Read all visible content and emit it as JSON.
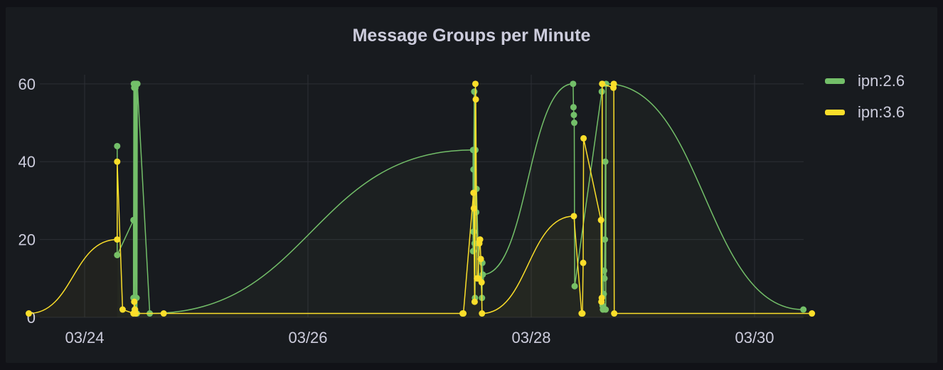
{
  "panel": {
    "title": "Message Groups per Minute"
  },
  "legend": {
    "items": [
      {
        "label": "ipn:2.6",
        "color": "#73bf69"
      },
      {
        "label": "ipn:3.6",
        "color": "#fade2a"
      }
    ]
  },
  "chart_data": {
    "type": "line",
    "title": "Message Groups per Minute",
    "xlabel": "",
    "ylabel": "",
    "xlim": [
      "03/23 12:00",
      "03/30 12:20"
    ],
    "ylim": [
      0,
      66
    ],
    "x_ticks": [
      "03/24",
      "03/26",
      "03/28",
      "03/30"
    ],
    "y_ticks": [
      0,
      20,
      40,
      60
    ],
    "grid": true,
    "legend_position": "right",
    "series": [
      {
        "name": "ipn:2.6",
        "color": "#73bf69",
        "points": [
          [
            "03/24 07:00",
            44
          ],
          [
            "03/24 07:00",
            16
          ],
          [
            "03/24 10:30",
            25
          ],
          [
            "03/24 10:30",
            5
          ],
          [
            "03/24 10:35",
            60
          ],
          [
            "03/24 10:40",
            59
          ],
          [
            "03/24 10:45",
            2
          ],
          [
            "03/24 10:50",
            60
          ],
          [
            "03/24 10:55",
            59
          ],
          [
            "03/24 11:00",
            1
          ],
          [
            "03/24 11:05",
            60
          ],
          [
            "03/24 11:10",
            5
          ],
          [
            "03/24 11:15",
            1
          ],
          [
            "03/24 11:20",
            60
          ],
          [
            "03/24 14:00",
            1
          ],
          [
            "03/27 11:30",
            43
          ],
          [
            "03/27 11:30",
            17
          ],
          [
            "03/27 11:35",
            38
          ],
          [
            "03/27 11:35",
            22
          ],
          [
            "03/27 11:40",
            43
          ],
          [
            "03/27 11:45",
            58
          ],
          [
            "03/27 11:50",
            19
          ],
          [
            "03/27 11:55",
            5
          ],
          [
            "03/27 12:00",
            43
          ],
          [
            "03/27 12:10",
            27
          ],
          [
            "03/27 12:15",
            33
          ],
          [
            "03/27 12:45",
            10
          ],
          [
            "03/27 13:10",
            10
          ],
          [
            "03/27 13:25",
            5
          ],
          [
            "03/27 13:30",
            14
          ],
          [
            "03/27 13:35",
            11
          ],
          [
            "03/28 09:00",
            60
          ],
          [
            "03/28 09:05",
            54
          ],
          [
            "03/28 09:10",
            52
          ],
          [
            "03/28 09:15",
            50
          ],
          [
            "03/28 09:20",
            8
          ],
          [
            "03/28 15:10",
            58
          ],
          [
            "03/28 15:15",
            60
          ],
          [
            "03/28 15:20",
            3
          ],
          [
            "03/28 15:25",
            2
          ],
          [
            "03/28 15:35",
            6
          ],
          [
            "03/28 15:40",
            12
          ],
          [
            "03/28 15:45",
            10
          ],
          [
            "03/28 15:50",
            20
          ],
          [
            "03/28 15:55",
            40
          ],
          [
            "03/28 16:00",
            2
          ],
          [
            "03/28 16:05",
            60
          ],
          [
            "03/30 10:30",
            2
          ]
        ]
      },
      {
        "name": "ipn:3.6",
        "color": "#fade2a",
        "points": [
          [
            "03/23 12:00",
            1
          ],
          [
            "03/24 07:00",
            20
          ],
          [
            "03/24 07:00",
            40
          ],
          [
            "03/24 08:10",
            2
          ],
          [
            "03/24 10:30",
            1
          ],
          [
            "03/24 10:40",
            4
          ],
          [
            "03/24 10:50",
            2
          ],
          [
            "03/24 11:00",
            1
          ],
          [
            "03/24 17:00",
            1
          ],
          [
            "03/27 09:15",
            1
          ],
          [
            "03/27 09:25",
            1
          ],
          [
            "03/27 11:35",
            32
          ],
          [
            "03/27 11:40",
            28
          ],
          [
            "03/27 11:50",
            4
          ],
          [
            "03/27 12:00",
            60
          ],
          [
            "03/27 12:05",
            56
          ],
          [
            "03/27 12:20",
            10
          ],
          [
            "03/27 12:35",
            10
          ],
          [
            "03/27 12:50",
            19
          ],
          [
            "03/27 13:00",
            20
          ],
          [
            "03/27 13:10",
            15
          ],
          [
            "03/27 13:20",
            9
          ],
          [
            "03/27 13:25",
            1
          ],
          [
            "03/28 09:10",
            26
          ],
          [
            "03/28 10:50",
            1
          ],
          [
            "03/28 11:00",
            1
          ],
          [
            "03/28 11:10",
            14
          ],
          [
            "03/28 11:15",
            46
          ],
          [
            "03/28 15:00",
            25
          ],
          [
            "03/28 15:05",
            4
          ],
          [
            "03/28 15:10",
            5
          ],
          [
            "03/28 15:15",
            60
          ],
          [
            "03/28 17:40",
            59
          ],
          [
            "03/28 17:45",
            60
          ],
          [
            "03/28 17:50",
            1
          ],
          [
            "03/30 12:20",
            1
          ]
        ]
      }
    ]
  }
}
